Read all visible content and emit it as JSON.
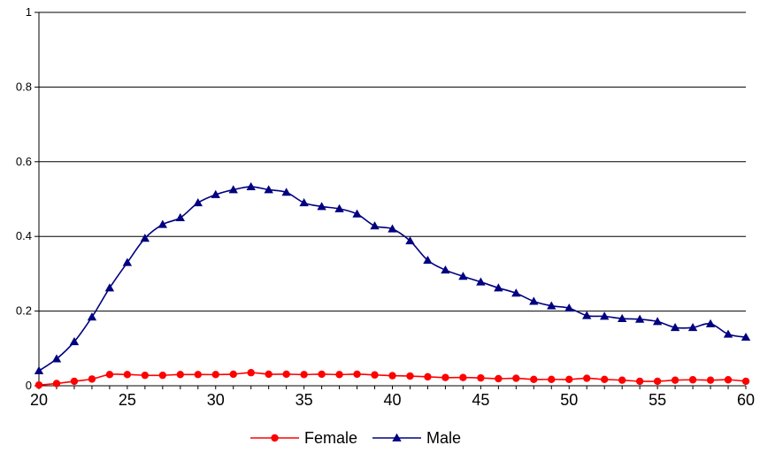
{
  "chart_data": {
    "type": "line",
    "title": "",
    "xlabel": "",
    "ylabel": "",
    "xlim": [
      20,
      60
    ],
    "ylim": [
      0,
      1
    ],
    "x_ticks": [
      20,
      25,
      30,
      35,
      40,
      45,
      50,
      55,
      60
    ],
    "x_tick_labels": [
      "20",
      "25",
      "30",
      "35",
      "40",
      "45",
      "50",
      "55",
      "60"
    ],
    "y_ticks": [
      0,
      0.2,
      0.4,
      0.6,
      0.8,
      1
    ],
    "y_tick_labels": [
      "0",
      "0.2",
      "0.4",
      "0.6",
      "0.8",
      "1"
    ],
    "grid": "horizontal",
    "legend_position": "bottom",
    "x": [
      20,
      21,
      22,
      23,
      24,
      25,
      26,
      27,
      28,
      29,
      30,
      31,
      32,
      33,
      34,
      35,
      36,
      37,
      38,
      39,
      40,
      41,
      42,
      43,
      44,
      45,
      46,
      47,
      48,
      49,
      50,
      51,
      52,
      53,
      54,
      55,
      56,
      57,
      58,
      59,
      60
    ],
    "series": [
      {
        "name": "Female",
        "color": "#ff0000",
        "marker": "circle",
        "values": [
          0.002,
          0.006,
          0.012,
          0.018,
          0.03,
          0.03,
          0.028,
          0.028,
          0.03,
          0.03,
          0.03,
          0.031,
          0.035,
          0.031,
          0.031,
          0.03,
          0.031,
          0.03,
          0.031,
          0.029,
          0.027,
          0.026,
          0.024,
          0.022,
          0.022,
          0.021,
          0.019,
          0.02,
          0.017,
          0.017,
          0.017,
          0.02,
          0.017,
          0.015,
          0.012,
          0.012,
          0.015,
          0.016,
          0.015,
          0.016,
          0.012
        ]
      },
      {
        "name": "Male",
        "color": "#000080",
        "marker": "triangle",
        "values": [
          0.04,
          0.072,
          0.118,
          0.184,
          0.262,
          0.33,
          0.395,
          0.432,
          0.45,
          0.49,
          0.512,
          0.525,
          0.533,
          0.525,
          0.518,
          0.49,
          0.48,
          0.474,
          0.46,
          0.428,
          0.42,
          0.388,
          0.336,
          0.31,
          0.293,
          0.278,
          0.262,
          0.248,
          0.226,
          0.214,
          0.208,
          0.188,
          0.186,
          0.18,
          0.178,
          0.172,
          0.156,
          0.156,
          0.166,
          0.138,
          0.13
        ]
      }
    ]
  }
}
